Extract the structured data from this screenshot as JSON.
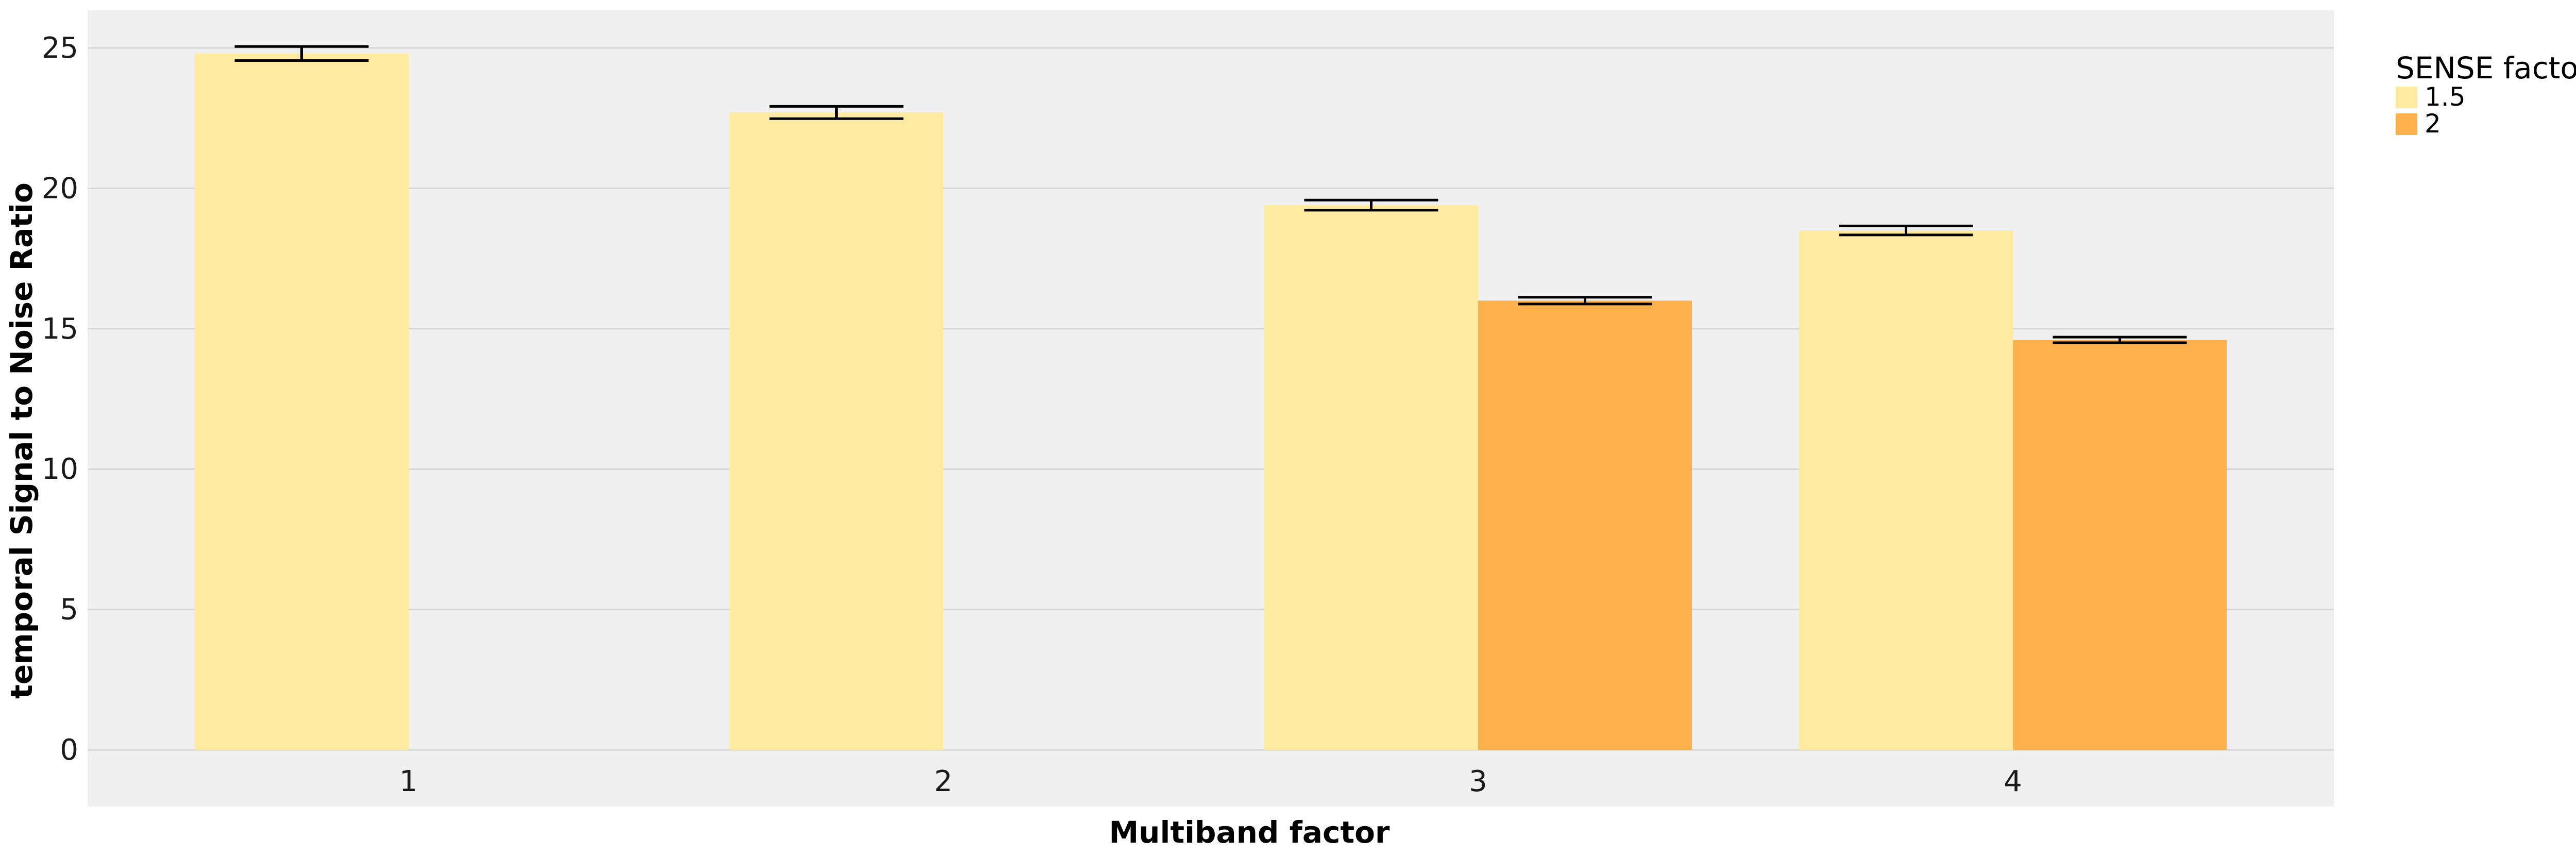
{
  "chart_data": {
    "type": "bar",
    "title": "",
    "xlabel": "Multiband factor",
    "ylabel": "temporal Signal to Noise Ratio",
    "categories": [
      "1",
      "2",
      "3",
      "4"
    ],
    "ylim": [
      0,
      26
    ],
    "yticks": [
      0,
      5,
      10,
      15,
      20,
      25
    ],
    "grid": true,
    "legend": {
      "title": "SENSE factor",
      "placement": "right"
    },
    "series": [
      {
        "name": "1.5",
        "color": "#feeba1",
        "values": [
          24.8,
          22.7,
          19.4,
          18.5
        ],
        "error": [
          0.25,
          0.22,
          0.18,
          0.16
        ]
      },
      {
        "name": "2",
        "color": "#fdb14d",
        "values": [
          null,
          null,
          16.0,
          14.6
        ],
        "error": [
          null,
          null,
          0.12,
          0.1
        ]
      }
    ],
    "panel_color": "#f0f0f0",
    "grid_color": "#d6d6d6"
  }
}
